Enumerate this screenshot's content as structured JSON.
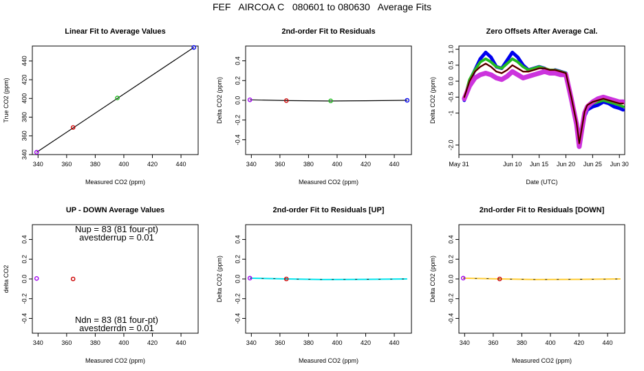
{
  "title": "FEF   AIRCOA C   080601 to 080630   Average Fits",
  "colors": {
    "purple": "#a000f0",
    "red": "#cc0000",
    "green": "#22bb22",
    "blue": "#0000ee",
    "black": "#000000",
    "magenta": "#cc33dd",
    "cyan": "#00e5ee",
    "yellow": "#ffcc33"
  },
  "chart_data": [
    {
      "id": "linear",
      "type": "scatter",
      "title": "Linear Fit to Average Values",
      "xlabel": "Measured CO2 (ppm)",
      "ylabel": "True CO2 (ppm)",
      "xlim": [
        336,
        452
      ],
      "ylim": [
        340,
        456
      ],
      "xticks": [
        340,
        360,
        380,
        400,
        420,
        440
      ],
      "yticks": [
        340,
        360,
        380,
        400,
        420,
        440
      ],
      "fit_line": [
        [
          339,
          342.5
        ],
        [
          449,
          454.5
        ]
      ],
      "points": [
        {
          "x": 339,
          "y": 342.5,
          "color": "purple"
        },
        {
          "x": 364.5,
          "y": 369,
          "color": "red"
        },
        {
          "x": 395.5,
          "y": 400.5,
          "color": "green"
        },
        {
          "x": 449,
          "y": 454.5,
          "color": "blue"
        }
      ]
    },
    {
      "id": "resid",
      "type": "scatter",
      "title": "2nd-order Fit to Residuals",
      "xlabel": "Measured CO2 (ppm)",
      "ylabel": "Delta CO2 (ppm)",
      "xlim": [
        336,
        452
      ],
      "ylim": [
        -0.55,
        0.55
      ],
      "xticks": [
        340,
        360,
        380,
        400,
        420,
        440
      ],
      "yticks": [
        -0.4,
        -0.2,
        0.0,
        0.2,
        0.4
      ],
      "fit_line": [
        [
          339,
          0.005
        ],
        [
          365,
          -0.003
        ],
        [
          395,
          -0.007
        ],
        [
          420,
          -0.004
        ],
        [
          449,
          0.0
        ]
      ],
      "points": [
        {
          "x": 339,
          "y": 0.005,
          "color": "purple"
        },
        {
          "x": 364.5,
          "y": -0.003,
          "color": "red"
        },
        {
          "x": 395.5,
          "y": -0.006,
          "color": "green"
        },
        {
          "x": 449,
          "y": 0.0,
          "color": "blue"
        }
      ]
    },
    {
      "id": "offsets",
      "type": "line",
      "title": "Zero Offsets After Average Cal.",
      "xlabel": "Date (UTC)",
      "ylabel": "Delta CO2 (ppm)",
      "xlim": [
        0,
        31
      ],
      "ylim": [
        -2.3,
        1.1
      ],
      "xticks": [
        0,
        10,
        15,
        20,
        25,
        30
      ],
      "xticklabels": [
        "May 31",
        "Jun 10",
        "Jun 15",
        "Jun 20",
        "Jun 25",
        "Jun 30"
      ],
      "yticks": [
        -2.0,
        -1.0,
        -0.5,
        0.0,
        0.5,
        1.0
      ],
      "yticklabels": [
        "-2.0",
        "-1",
        "-0.5",
        "0.0",
        "0.5",
        "1.0"
      ],
      "series": [
        {
          "name": "blue",
          "color": "blue",
          "width": 5,
          "x": [
            1,
            2,
            3,
            4,
            5,
            6,
            7,
            8,
            9,
            10,
            11,
            12,
            13,
            14,
            15,
            16,
            17,
            18,
            19,
            20,
            21,
            22,
            22.5,
            23,
            23.5,
            24,
            25,
            26,
            27,
            28,
            29,
            30,
            30.7
          ],
          "y": [
            -0.6,
            0.0,
            0.35,
            0.7,
            0.9,
            0.75,
            0.45,
            0.4,
            0.65,
            0.9,
            0.75,
            0.5,
            0.35,
            0.4,
            0.45,
            0.4,
            0.3,
            0.35,
            0.3,
            0.25,
            -0.5,
            -1.3,
            -2.0,
            -1.6,
            -1.1,
            -0.9,
            -0.8,
            -0.75,
            -0.65,
            -0.7,
            -0.8,
            -0.85,
            -0.9
          ]
        },
        {
          "name": "green",
          "color": "green",
          "width": 4,
          "x": [
            1,
            2,
            3,
            4,
            5,
            6,
            7,
            8,
            9,
            10,
            11,
            12,
            13,
            14,
            15,
            16,
            17,
            18,
            19,
            20,
            21,
            22,
            22.5,
            23,
            23.5,
            24,
            25,
            26,
            27,
            28,
            29,
            30,
            30.7
          ],
          "y": [
            -0.55,
            0.05,
            0.35,
            0.6,
            0.7,
            0.6,
            0.45,
            0.4,
            0.55,
            0.7,
            0.6,
            0.45,
            0.35,
            0.4,
            0.45,
            0.4,
            0.35,
            0.35,
            0.3,
            0.25,
            -0.5,
            -1.3,
            -1.95,
            -1.55,
            -1.05,
            -0.85,
            -0.7,
            -0.65,
            -0.6,
            -0.65,
            -0.7,
            -0.75,
            -0.8
          ]
        },
        {
          "name": "magenta",
          "color": "magenta",
          "width": 7,
          "x": [
            1,
            2,
            3,
            4,
            5,
            6,
            7,
            8,
            9,
            10,
            11,
            12,
            13,
            14,
            15,
            16,
            17,
            18,
            19,
            20,
            21,
            22,
            22.5,
            23,
            23.5,
            24,
            25,
            26,
            27,
            28,
            29,
            30,
            30.7
          ],
          "y": [
            -0.55,
            -0.15,
            0.1,
            0.2,
            0.25,
            0.2,
            0.1,
            0.05,
            0.15,
            0.3,
            0.2,
            0.1,
            0.15,
            0.2,
            0.25,
            0.3,
            0.25,
            0.25,
            0.2,
            0.2,
            -0.55,
            -1.35,
            -2.05,
            -1.5,
            -1.0,
            -0.8,
            -0.65,
            -0.55,
            -0.5,
            -0.55,
            -0.6,
            -0.65,
            -0.65
          ]
        },
        {
          "name": "red",
          "color": "red",
          "width": 2.5,
          "x": [
            1,
            2,
            3,
            4,
            5,
            6,
            7,
            8,
            9,
            10,
            11,
            12,
            13,
            14,
            15,
            16,
            17,
            18,
            19,
            20,
            21,
            22,
            22.5,
            23,
            23.5,
            24,
            25,
            26,
            27,
            28,
            29,
            30,
            30.7
          ],
          "y": [
            -0.5,
            0.0,
            0.3,
            0.45,
            0.55,
            0.45,
            0.3,
            0.25,
            0.35,
            0.5,
            0.4,
            0.3,
            0.3,
            0.35,
            0.4,
            0.4,
            0.35,
            0.35,
            0.3,
            0.25,
            -0.5,
            -1.3,
            -1.95,
            -1.45,
            -0.95,
            -0.75,
            -0.65,
            -0.6,
            -0.55,
            -0.6,
            -0.65,
            -0.7,
            -0.7
          ]
        },
        {
          "name": "black",
          "color": "black",
          "width": 1.2,
          "x": [
            1,
            2,
            3,
            4,
            5,
            6,
            7,
            8,
            9,
            10,
            11,
            12,
            13,
            14,
            15,
            16,
            17,
            18,
            19,
            20,
            21,
            22,
            22.5,
            23,
            23.5,
            24,
            25,
            26,
            27,
            28,
            29,
            30,
            30.7
          ],
          "y": [
            -0.5,
            0.0,
            0.3,
            0.45,
            0.55,
            0.45,
            0.3,
            0.25,
            0.35,
            0.5,
            0.4,
            0.3,
            0.3,
            0.35,
            0.4,
            0.4,
            0.35,
            0.35,
            0.3,
            0.25,
            -0.5,
            -1.3,
            -1.95,
            -1.45,
            -0.95,
            -0.75,
            -0.65,
            -0.6,
            -0.55,
            -0.6,
            -0.65,
            -0.7,
            -0.7
          ]
        }
      ]
    },
    {
      "id": "updown",
      "type": "scatter",
      "title": "UP - DOWN Average Values",
      "xlabel": "Measured CO2 (ppm)",
      "ylabel": "delta CO2",
      "xlim": [
        336,
        452
      ],
      "ylim": [
        -0.55,
        0.55
      ],
      "xticks": [
        340,
        360,
        380,
        400,
        420,
        440
      ],
      "yticks": [
        -0.4,
        -0.2,
        0.0,
        0.2,
        0.4
      ],
      "annotations": {
        "nup": "Nup = 83 (81 four-pt)",
        "avestderrup": "avestderrup =  0.01",
        "ndn": "Ndn = 83 (81 four-pt)",
        "avestderrdn": "avestderrdn =  0.01"
      },
      "points": [
        {
          "x": 339,
          "y": 0.005,
          "color": "purple"
        },
        {
          "x": 364.5,
          "y": 0.0,
          "color": "red"
        }
      ]
    },
    {
      "id": "resid-up",
      "type": "scatter",
      "title": "2nd-order Fit to Residuals [UP]",
      "xlabel": "Measured CO2 (ppm)",
      "ylabel": "Delta CO2 (ppm)",
      "xlim": [
        336,
        452
      ],
      "ylim": [
        -0.55,
        0.55
      ],
      "xticks": [
        340,
        360,
        380,
        400,
        420,
        440
      ],
      "yticks": [
        -0.4,
        -0.2,
        0.0,
        0.2,
        0.4
      ],
      "fit_color": "cyan",
      "fit_line": [
        [
          339,
          0.008
        ],
        [
          365,
          0.0
        ],
        [
          390,
          -0.006
        ],
        [
          420,
          -0.004
        ],
        [
          449,
          0.0
        ]
      ],
      "points": [
        {
          "x": 339,
          "y": 0.008,
          "color": "purple"
        },
        {
          "x": 364.5,
          "y": 0.0,
          "color": "red"
        }
      ]
    },
    {
      "id": "resid-down",
      "type": "scatter",
      "title": "2nd-order Fit to Residuals [DOWN]",
      "xlabel": "Measured CO2 (ppm)",
      "ylabel": "Delta CO2 (ppm)",
      "xlim": [
        336,
        452
      ],
      "ylim": [
        -0.55,
        0.55
      ],
      "xticks": [
        340,
        360,
        380,
        400,
        420,
        440
      ],
      "yticks": [
        -0.4,
        -0.2,
        0.0,
        0.2,
        0.4
      ],
      "fit_color": "yellow",
      "fit_line": [
        [
          339,
          0.008
        ],
        [
          365,
          0.0
        ],
        [
          390,
          -0.006
        ],
        [
          420,
          -0.004
        ],
        [
          449,
          0.0
        ]
      ],
      "points": [
        {
          "x": 339,
          "y": 0.008,
          "color": "purple"
        },
        {
          "x": 364.5,
          "y": 0.0,
          "color": "red"
        }
      ]
    }
  ]
}
